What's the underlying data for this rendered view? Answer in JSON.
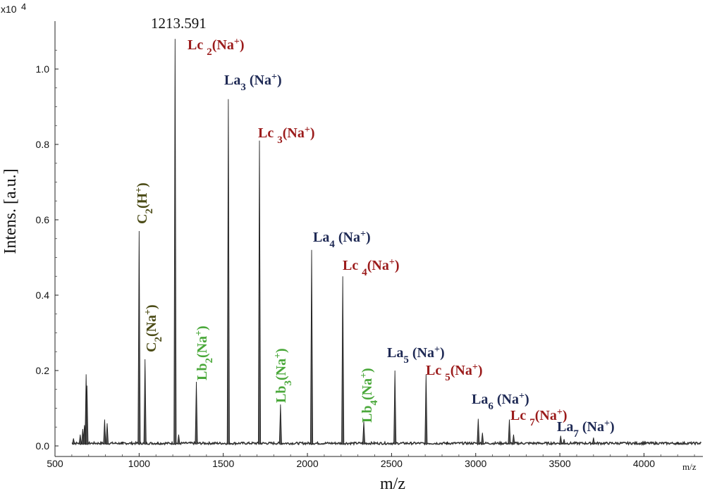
{
  "chart_data": {
    "type": "line",
    "title": "",
    "xlabel": "m/z",
    "ylabel": "Intens. [a.u.]",
    "y_multiplier_label": "x10",
    "y_multiplier_exp": "4",
    "x_unit_label": "m/z",
    "xlim": [
      500,
      4350
    ],
    "ylim": [
      0,
      1.1
    ],
    "xticks": [
      500,
      1000,
      1500,
      2000,
      2500,
      3000,
      3500,
      4000
    ],
    "xtick_labels": [
      "500",
      "1000",
      "1500",
      "2000",
      "2500",
      "3000",
      "3500",
      "4000"
    ],
    "yticks": [
      0.0,
      0.2,
      0.4,
      0.6,
      0.8,
      1.0
    ],
    "ytick_labels": [
      "0.0",
      "0.2",
      "0.4",
      "0.6",
      "0.8",
      "1.0"
    ],
    "peak_value_label": "1213.591",
    "peaks": [
      {
        "x": 610,
        "y": 0.02
      },
      {
        "x": 650,
        "y": 0.03
      },
      {
        "x": 665,
        "y": 0.045
      },
      {
        "x": 675,
        "y": 0.055
      },
      {
        "x": 685,
        "y": 0.19
      },
      {
        "x": 690,
        "y": 0.16
      },
      {
        "x": 795,
        "y": 0.07
      },
      {
        "x": 810,
        "y": 0.06
      },
      {
        "x": 900,
        "y": 0.01
      },
      {
        "x": 1000,
        "y": 0.57
      },
      {
        "x": 1035,
        "y": 0.23
      },
      {
        "x": 1110,
        "y": 0.01
      },
      {
        "x": 1213.591,
        "y": 1.08
      },
      {
        "x": 1235,
        "y": 0.03
      },
      {
        "x": 1340,
        "y": 0.17
      },
      {
        "x": 1530,
        "y": 0.92
      },
      {
        "x": 1715,
        "y": 0.81
      },
      {
        "x": 1840,
        "y": 0.11
      },
      {
        "x": 2025,
        "y": 0.52
      },
      {
        "x": 2210,
        "y": 0.45
      },
      {
        "x": 2335,
        "y": 0.065
      },
      {
        "x": 2520,
        "y": 0.2
      },
      {
        "x": 2705,
        "y": 0.19
      },
      {
        "x": 2830,
        "y": 0.01
      },
      {
        "x": 3015,
        "y": 0.072
      },
      {
        "x": 3040,
        "y": 0.035
      },
      {
        "x": 3200,
        "y": 0.07
      },
      {
        "x": 3225,
        "y": 0.03
      },
      {
        "x": 3505,
        "y": 0.027
      },
      {
        "x": 3525,
        "y": 0.018
      },
      {
        "x": 3700,
        "y": 0.022
      },
      {
        "x": 4000,
        "y": 0.012
      },
      {
        "x": 4200,
        "y": 0.008
      }
    ],
    "annotations": [
      {
        "key": "c2h",
        "base": "C",
        "sub": "2",
        "rest": "(H",
        "sup": "+",
        "tail": ")",
        "color": "olive",
        "rotate": true
      },
      {
        "key": "c2na",
        "base": "C",
        "sub": "2",
        "rest": "(Na",
        "sup": "+",
        "tail": ")",
        "color": "olive",
        "rotate": true
      },
      {
        "key": "lc2",
        "base": "Lc ",
        "sub": "2",
        "rest": "(Na",
        "sup": "+",
        "tail": ")",
        "color": "red",
        "rotate": false
      },
      {
        "key": "lb2",
        "base": "Lb",
        "sub": "2",
        "rest": "(Na",
        "sup": "+",
        "tail": ")",
        "color": "green",
        "rotate": true
      },
      {
        "key": "la3",
        "base": "La",
        "sub": "3",
        "rest": " (Na",
        "sup": "+",
        "tail": ")",
        "color": "blue",
        "rotate": false
      },
      {
        "key": "lc3",
        "base": "Lc ",
        "sub": "3",
        "rest": "(Na",
        "sup": "+",
        "tail": ")",
        "color": "red",
        "rotate": false
      },
      {
        "key": "lb3",
        "base": "Lb",
        "sub": "3",
        "rest": "(Na",
        "sup": "+",
        "tail": ")",
        "color": "green",
        "rotate": true
      },
      {
        "key": "la4",
        "base": "La",
        "sub": "4",
        "rest": " (Na",
        "sup": "+",
        "tail": ")",
        "color": "blue",
        "rotate": false
      },
      {
        "key": "lc4",
        "base": "Lc ",
        "sub": "4",
        "rest": "(Na",
        "sup": "+",
        "tail": ")",
        "color": "red",
        "rotate": false
      },
      {
        "key": "lb4",
        "base": "Lb",
        "sub": "4",
        "rest": "(Na",
        "sup": "+",
        "tail": ")",
        "color": "green",
        "rotate": true
      },
      {
        "key": "la5",
        "base": "La",
        "sub": "5",
        "rest": " (Na",
        "sup": "+",
        "tail": ")",
        "color": "blue",
        "rotate": false
      },
      {
        "key": "lc5",
        "base": "Lc ",
        "sub": "5",
        "rest": "(Na",
        "sup": "+",
        "tail": ")",
        "color": "red",
        "rotate": false
      },
      {
        "key": "la6",
        "base": "La",
        "sub": "6",
        "rest": " (Na",
        "sup": "+",
        "tail": ")",
        "color": "blue",
        "rotate": false
      },
      {
        "key": "lc7",
        "base": "Lc ",
        "sub": "7",
        "rest": "(Na",
        "sup": "+",
        "tail": ")",
        "color": "red",
        "rotate": false
      },
      {
        "key": "la7",
        "base": "La",
        "sub": "7",
        "rest": " (Na",
        "sup": "+",
        "tail": ")",
        "color": "blue",
        "rotate": false
      }
    ],
    "grid": false,
    "colors": {
      "spectrum": "#333333",
      "blue": "#1f2a55",
      "red": "#9b1b1b",
      "olive": "#4b4b16",
      "green": "#4aa83a"
    }
  }
}
